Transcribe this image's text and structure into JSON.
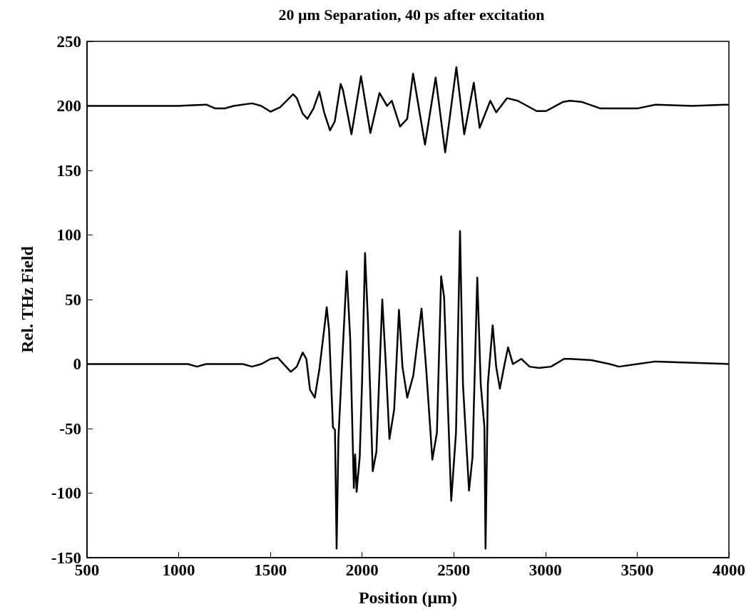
{
  "chart_data": {
    "type": "line",
    "title": "20 μm Separation, 40 ps after excitation",
    "xlabel": "Position (μm)",
    "ylabel": "Rel. THz Field",
    "xlim": [
      500,
      4000
    ],
    "xticks": [
      500,
      1000,
      1500,
      2000,
      2500,
      3000,
      3500,
      4000
    ],
    "ylim": [
      -150,
      250
    ],
    "yticks": [
      -150,
      -100,
      -50,
      0,
      50,
      100,
      150,
      200,
      250
    ],
    "grid": false,
    "marker": "none",
    "line_style": "solid",
    "series": [
      {
        "color": "#000000",
        "x": [
          500,
          1000,
          1150,
          1200,
          1250,
          1300,
          1400,
          1450,
          1501,
          1553,
          1624,
          1644,
          1676,
          1702,
          1735,
          1767,
          1793,
          1825,
          1851,
          1883,
          1896,
          1942,
          1994,
          2045,
          2095,
          2136,
          2162,
          2207,
          2246,
          2278,
          2343,
          2401,
          2453,
          2514,
          2557,
          2609,
          2641,
          2699,
          2731,
          2790,
          2848,
          2952,
          3003,
          3094,
          3133,
          3200,
          3300,
          3350,
          3500,
          3600,
          3800,
          4000
        ],
        "values": [
          200,
          200,
          201,
          198,
          198,
          200,
          202,
          200,
          195.5,
          199,
          209,
          206,
          194,
          190,
          198,
          211,
          195,
          181,
          188,
          217,
          212,
          178,
          223,
          179,
          210,
          200,
          204,
          184,
          190,
          225,
          170,
          222,
          164,
          230,
          178,
          218,
          183,
          204,
          195,
          206,
          204,
          196,
          196,
          203,
          204,
          203,
          198,
          198,
          198,
          201,
          200,
          201
        ]
      },
      {
        "color": "#000000",
        "x": [
          500,
          1050,
          1100,
          1150,
          1350,
          1400,
          1450,
          1501,
          1540,
          1611,
          1644,
          1676,
          1696,
          1716,
          1742,
          1768,
          1794,
          1807,
          1820,
          1841,
          1852,
          1861,
          1871,
          1890,
          1916,
          1935,
          1955,
          1962,
          1970,
          1987,
          2000,
          2016,
          2032,
          2058,
          2078,
          2110,
          2130,
          2149,
          2175,
          2201,
          2220,
          2246,
          2279,
          2324,
          2350,
          2383,
          2408,
          2431,
          2447,
          2486,
          2512,
          2534,
          2550,
          2583,
          2602,
          2628,
          2647,
          2667,
          2673,
          2686,
          2712,
          2731,
          2751,
          2777,
          2796,
          2822,
          2868,
          2913,
          2965,
          3030,
          3101,
          3133,
          3250,
          3350,
          3400,
          3500,
          3600,
          4000
        ],
        "values": [
          0,
          0,
          -2,
          0,
          0,
          -2,
          0,
          4,
          5,
          -6,
          -2,
          9,
          4,
          -20,
          -26,
          -3,
          28,
          44,
          26,
          -49,
          -51,
          -143,
          -57,
          -2,
          72,
          20,
          -96,
          -70,
          -99,
          -72,
          -13,
          86,
          33,
          -83,
          -68,
          50,
          -2,
          -58,
          -35,
          42,
          -2,
          -26,
          -9,
          43,
          -5,
          -74,
          -53,
          68,
          52,
          -106,
          -53,
          103,
          -16,
          -98,
          -72,
          67,
          -16,
          -49,
          -143,
          -15,
          30,
          -2,
          -19,
          0,
          13,
          0,
          4,
          -2,
          -3,
          -2,
          4,
          4,
          3,
          0,
          -2,
          0,
          2,
          0
        ]
      }
    ]
  }
}
